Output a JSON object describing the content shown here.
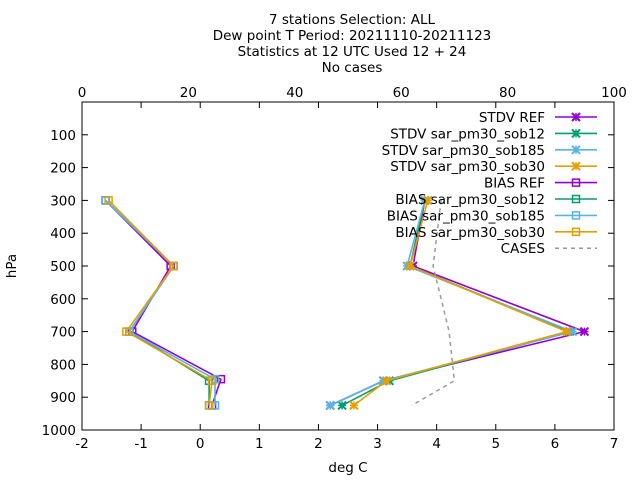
{
  "chart_data": {
    "type": "line",
    "title_lines": [
      "7 stations Selection: ALL",
      "Dew point T  Period: 20211110-20211123",
      "Statistics at 12 UTC  Used 12 + 24",
      "No cases"
    ],
    "xlabel": "deg C",
    "ylabel": "hPa",
    "xlim": [
      -2,
      7
    ],
    "x_ticks": [
      -2,
      -1,
      0,
      1,
      2,
      3,
      4,
      5,
      6,
      7
    ],
    "ylim": [
      1000,
      0
    ],
    "y_ticks": [
      100,
      200,
      300,
      400,
      500,
      600,
      700,
      800,
      900,
      1000
    ],
    "x2lim": [
      0,
      100
    ],
    "x2_ticks": [
      0,
      20,
      40,
      60,
      80,
      100
    ],
    "legend_position": "top-right",
    "grid": false,
    "series": [
      {
        "name": "STDV REF",
        "color": "#9400d3",
        "marker": "x",
        "dash": false,
        "points": [
          [
            3.8,
            300
          ],
          [
            3.6,
            500
          ],
          [
            6.5,
            700
          ],
          [
            3.1,
            850
          ],
          [
            2.2,
            925
          ]
        ]
      },
      {
        "name": "STDV sar_pm30_sob12",
        "color": "#009e73",
        "marker": "x",
        "dash": false,
        "points": [
          [
            3.8,
            300
          ],
          [
            3.55,
            500
          ],
          [
            6.25,
            700
          ],
          [
            3.2,
            850
          ],
          [
            2.4,
            925
          ]
        ]
      },
      {
        "name": "STDV sar_pm30_sob185",
        "color": "#56b4e9",
        "marker": "x",
        "dash": false,
        "points": [
          [
            3.8,
            300
          ],
          [
            3.5,
            500
          ],
          [
            6.3,
            700
          ],
          [
            3.1,
            850
          ],
          [
            2.2,
            925
          ]
        ]
      },
      {
        "name": "STDV sar_pm30_sob30",
        "color": "#e69f00",
        "marker": "x",
        "dash": false,
        "points": [
          [
            3.85,
            300
          ],
          [
            3.55,
            500
          ],
          [
            6.2,
            700
          ],
          [
            3.15,
            850
          ],
          [
            2.6,
            925
          ]
        ]
      },
      {
        "name": "BIAS REF",
        "color": "#9400d3",
        "marker": "square",
        "dash": false,
        "points": [
          [
            -1.6,
            300
          ],
          [
            -0.5,
            500
          ],
          [
            -1.15,
            700
          ],
          [
            0.35,
            845
          ],
          [
            0.2,
            925
          ]
        ]
      },
      {
        "name": "BIAS sar_pm30_sob12",
        "color": "#009e73",
        "marker": "square",
        "dash": false,
        "points": [
          [
            -1.6,
            300
          ],
          [
            -0.45,
            500
          ],
          [
            -1.2,
            700
          ],
          [
            0.15,
            850
          ],
          [
            0.15,
            925
          ]
        ]
      },
      {
        "name": "BIAS sar_pm30_sob185",
        "color": "#56b4e9",
        "marker": "square",
        "dash": false,
        "points": [
          [
            -1.6,
            300
          ],
          [
            -0.45,
            500
          ],
          [
            -1.2,
            700
          ],
          [
            0.25,
            845
          ],
          [
            0.25,
            925
          ]
        ]
      },
      {
        "name": "BIAS sar_pm30_sob30",
        "color": "#e69f00",
        "marker": "square",
        "dash": false,
        "points": [
          [
            -1.55,
            300
          ],
          [
            -0.45,
            500
          ],
          [
            -1.25,
            700
          ],
          [
            0.2,
            850
          ],
          [
            0.15,
            925
          ]
        ]
      },
      {
        "name": "CASES",
        "color": "#999999",
        "marker": "none",
        "dash": true,
        "axis": "x2",
        "points": [
          [
            67.5,
            300
          ],
          [
            66,
            500
          ],
          [
            69,
            700
          ],
          [
            70,
            850
          ],
          [
            62,
            925
          ]
        ]
      }
    ]
  }
}
